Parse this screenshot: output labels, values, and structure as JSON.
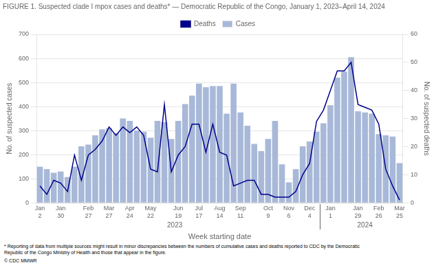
{
  "chart_data": {
    "type": "bar",
    "title": "FIGURE 1. Suspected clade I mpox cases and deaths* — Democratic Republic of the Congo, January 1, 2023–April 14, 2024",
    "xlabel": "Week starting date",
    "ylabel": "No. of suspected cases",
    "y2label": "No. of suspected deaths",
    "annotations": [
      "2023",
      "2024"
    ],
    "footnote": "* Reporting of data from multiple sources might result in minor discrepancies between the numbers of cumulative cases and deaths reported to CDC by the Democratic\nRepublic of the Congo Ministry of Health and those that appear in the figure.",
    "credit": "© CDC MMWR",
    "categories": [
      "Jan\n2",
      null,
      null,
      "Jan\n30",
      null,
      null,
      null,
      "Feb\n27",
      null,
      null,
      "Mar\n27",
      null,
      null,
      "Apr\n24",
      null,
      null,
      "May\n22",
      null,
      null,
      null,
      "Jun\n19",
      null,
      null,
      "Jul\n17",
      null,
      null,
      "Aug\n14",
      null,
      null,
      "Sep\n11",
      null,
      null,
      null,
      "Oct\n9",
      null,
      null,
      "Nov\n6",
      null,
      null,
      "Dec\n4",
      null,
      null,
      "Jan\n1",
      null,
      null,
      null,
      "Jan\n29",
      null,
      null,
      "Feb\n26",
      null,
      null,
      "Mar\n25"
    ],
    "series": [
      {
        "name": "Cases",
        "type": "bar",
        "color": "#a8b8d8",
        "values": [
          150,
          140,
          125,
          130,
          107,
          150,
          235,
          242,
          280,
          305,
          310,
          290,
          350,
          340,
          300,
          295,
          270,
          340,
          335,
          265,
          340,
          410,
          445,
          495,
          480,
          485,
          485,
          370,
          495,
          375,
          320,
          245,
          215,
          265,
          340,
          160,
          85,
          140,
          235,
          255,
          295,
          330,
          405,
          520,
          545,
          605,
          380,
          375,
          370,
          285,
          280,
          275,
          165
        ]
      },
      {
        "name": "Deaths",
        "type": "line",
        "color": "#00008b",
        "axis": "y2",
        "values": [
          6,
          3,
          8,
          7,
          4,
          17,
          8,
          17,
          19,
          22,
          27,
          24,
          27,
          25,
          27,
          24,
          12,
          11,
          35,
          11,
          17,
          20,
          28,
          28,
          18,
          28,
          18,
          17,
          6,
          7,
          8,
          8,
          3,
          3,
          2,
          2,
          2,
          4,
          10,
          14,
          29,
          33,
          40,
          47,
          47,
          50,
          35,
          34,
          33,
          28,
          12,
          6,
          1
        ]
      }
    ],
    "ylim": [
      0,
      700
    ],
    "yticks": [
      0,
      100,
      200,
      300,
      400,
      500,
      600,
      700
    ],
    "y2lim": [
      0,
      60
    ],
    "y2ticks": [
      0,
      10,
      20,
      30,
      40,
      50,
      60
    ],
    "grid": true,
    "legend": "top"
  }
}
